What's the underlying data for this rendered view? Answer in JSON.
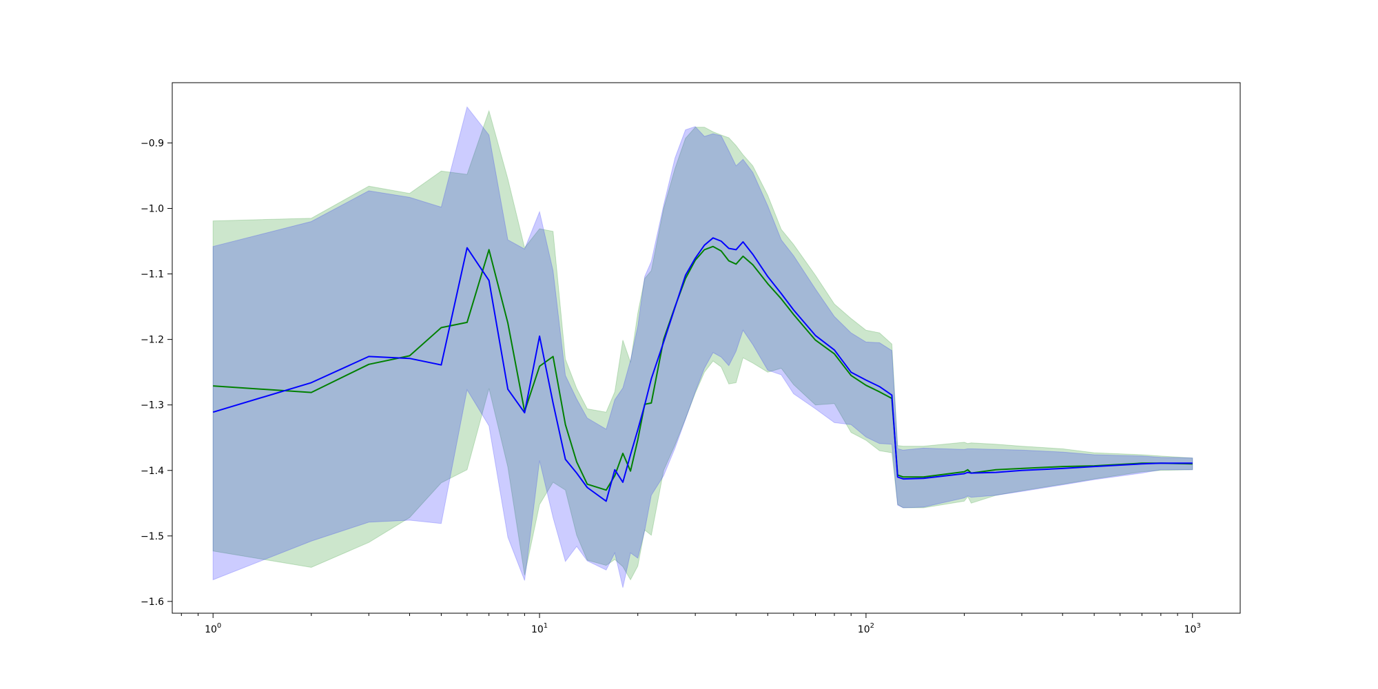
{
  "chart_data": {
    "type": "line",
    "title": "",
    "xlabel": "",
    "ylabel": "",
    "xscale": "log",
    "xlim": [
      0.75,
      1400
    ],
    "ylim": [
      -1.618,
      -0.808
    ],
    "grid": false,
    "legend": "none",
    "x_ticks": [
      {
        "value": 1,
        "base": "10",
        "exp": "0"
      },
      {
        "value": 10,
        "base": "10",
        "exp": "1"
      },
      {
        "value": 100,
        "base": "10",
        "exp": "2"
      },
      {
        "value": 1000,
        "base": "10",
        "exp": "3"
      }
    ],
    "y_ticks": [
      {
        "value": -0.9,
        "label": "−0.9"
      },
      {
        "value": -1.0,
        "label": "−1.0"
      },
      {
        "value": -1.1,
        "label": "−1.1"
      },
      {
        "value": -1.2,
        "label": "−1.2"
      },
      {
        "value": -1.3,
        "label": "−1.3"
      },
      {
        "value": -1.4,
        "label": "−1.4"
      },
      {
        "value": -1.5,
        "label": "−1.5"
      },
      {
        "value": -1.6,
        "label": "−1.6"
      }
    ],
    "series": [
      {
        "color": "#008000",
        "band_color": "#008000",
        "band_opacity": 0.2,
        "x": [
          1,
          2,
          3,
          4,
          5,
          6,
          7,
          8,
          9,
          10,
          11,
          12,
          13,
          14,
          16,
          17,
          18,
          19,
          20,
          21,
          22,
          24,
          26,
          28,
          30,
          32,
          34,
          36,
          38,
          40,
          42,
          45,
          50,
          55,
          60,
          70,
          80,
          90,
          100,
          110,
          120,
          125,
          130,
          150,
          200,
          205,
          210,
          250,
          300,
          400,
          500,
          700,
          800,
          1000
        ],
        "y": [
          -1.271,
          -1.281,
          -1.238,
          -1.225,
          -1.182,
          -1.174,
          -1.063,
          -1.175,
          -1.31,
          -1.241,
          -1.226,
          -1.33,
          -1.387,
          -1.421,
          -1.43,
          -1.408,
          -1.374,
          -1.401,
          -1.353,
          -1.299,
          -1.297,
          -1.2,
          -1.15,
          -1.107,
          -1.079,
          -1.063,
          -1.058,
          -1.065,
          -1.08,
          -1.085,
          -1.073,
          -1.086,
          -1.115,
          -1.138,
          -1.162,
          -1.201,
          -1.222,
          -1.255,
          -1.27,
          -1.28,
          -1.29,
          -1.407,
          -1.41,
          -1.41,
          -1.402,
          -1.399,
          -1.404,
          -1.399,
          -1.397,
          -1.394,
          -1.393,
          -1.389,
          -1.389,
          -1.39
        ],
        "upper": [
          -1.019,
          -1.015,
          -0.966,
          -0.977,
          -0.943,
          -0.948,
          -0.851,
          -0.955,
          -1.06,
          -1.031,
          -1.035,
          -1.23,
          -1.275,
          -1.306,
          -1.311,
          -1.28,
          -1.201,
          -1.235,
          -1.16,
          -1.107,
          -1.095,
          -1.0,
          -0.939,
          -0.893,
          -0.876,
          -0.876,
          -0.883,
          -0.888,
          -0.892,
          -0.904,
          -0.918,
          -0.935,
          -0.98,
          -1.032,
          -1.055,
          -1.102,
          -1.146,
          -1.168,
          -1.186,
          -1.19,
          -1.207,
          -1.362,
          -1.363,
          -1.363,
          -1.357,
          -1.359,
          -1.358,
          -1.36,
          -1.363,
          -1.367,
          -1.373,
          -1.376,
          -1.378,
          -1.381
        ],
        "lower": [
          -1.523,
          -1.548,
          -1.51,
          -1.472,
          -1.419,
          -1.399,
          -1.275,
          -1.395,
          -1.56,
          -1.452,
          -1.418,
          -1.43,
          -1.499,
          -1.537,
          -1.545,
          -1.536,
          -1.547,
          -1.567,
          -1.546,
          -1.491,
          -1.499,
          -1.4,
          -1.361,
          -1.321,
          -1.282,
          -1.25,
          -1.233,
          -1.242,
          -1.268,
          -1.266,
          -1.228,
          -1.236,
          -1.25,
          -1.244,
          -1.269,
          -1.3,
          -1.298,
          -1.342,
          -1.354,
          -1.37,
          -1.373,
          -1.452,
          -1.457,
          -1.457,
          -1.447,
          -1.44,
          -1.45,
          -1.438,
          -1.431,
          -1.421,
          -1.413,
          -1.402,
          -1.4,
          -1.399
        ]
      },
      {
        "color": "#0000ff",
        "band_color": "#0000ff",
        "band_opacity": 0.2,
        "x": [
          1,
          2,
          3,
          4,
          5,
          6,
          7,
          8,
          9,
          10,
          11,
          12,
          13,
          14,
          16,
          17,
          18,
          19,
          20,
          21,
          22,
          24,
          26,
          28,
          30,
          32,
          34,
          36,
          38,
          40,
          42,
          45,
          50,
          55,
          60,
          70,
          80,
          90,
          100,
          110,
          120,
          125,
          130,
          150,
          200,
          205,
          210,
          250,
          300,
          400,
          500,
          700,
          800,
          1000
        ],
        "y": [
          -1.311,
          -1.266,
          -1.226,
          -1.229,
          -1.239,
          -1.06,
          -1.11,
          -1.276,
          -1.312,
          -1.195,
          -1.297,
          -1.383,
          -1.404,
          -1.426,
          -1.447,
          -1.399,
          -1.418,
          -1.376,
          -1.338,
          -1.3,
          -1.26,
          -1.204,
          -1.151,
          -1.102,
          -1.076,
          -1.056,
          -1.045,
          -1.05,
          -1.061,
          -1.063,
          -1.051,
          -1.07,
          -1.104,
          -1.13,
          -1.155,
          -1.194,
          -1.216,
          -1.25,
          -1.262,
          -1.272,
          -1.285,
          -1.41,
          -1.413,
          -1.412,
          -1.405,
          -1.403,
          -1.404,
          -1.403,
          -1.4,
          -1.397,
          -1.394,
          -1.39,
          -1.389,
          -1.389
        ],
        "upper": [
          -1.058,
          -1.02,
          -0.973,
          -0.983,
          -0.998,
          -0.845,
          -0.888,
          -1.048,
          -1.062,
          -1.005,
          -1.095,
          -1.255,
          -1.291,
          -1.32,
          -1.337,
          -1.292,
          -1.274,
          -1.232,
          -1.18,
          -1.104,
          -1.081,
          -0.995,
          -0.923,
          -0.88,
          -0.875,
          -0.89,
          -0.886,
          -0.889,
          -0.912,
          -0.935,
          -0.925,
          -0.945,
          -0.996,
          -1.048,
          -1.072,
          -1.123,
          -1.165,
          -1.19,
          -1.204,
          -1.205,
          -1.217,
          -1.367,
          -1.369,
          -1.366,
          -1.368,
          -1.367,
          -1.367,
          -1.368,
          -1.369,
          -1.372,
          -1.376,
          -1.378,
          -1.38,
          -1.381
        ],
        "lower": [
          -1.567,
          -1.508,
          -1.479,
          -1.476,
          -1.481,
          -1.277,
          -1.332,
          -1.502,
          -1.568,
          -1.385,
          -1.472,
          -1.539,
          -1.516,
          -1.538,
          -1.552,
          -1.526,
          -1.579,
          -1.526,
          -1.534,
          -1.492,
          -1.438,
          -1.408,
          -1.366,
          -1.322,
          -1.28,
          -1.244,
          -1.22,
          -1.227,
          -1.24,
          -1.218,
          -1.186,
          -1.208,
          -1.247,
          -1.254,
          -1.283,
          -1.306,
          -1.327,
          -1.33,
          -1.349,
          -1.359,
          -1.36,
          -1.453,
          -1.457,
          -1.456,
          -1.442,
          -1.439,
          -1.441,
          -1.438,
          -1.432,
          -1.422,
          -1.414,
          -1.404,
          -1.399,
          -1.399
        ]
      }
    ]
  }
}
